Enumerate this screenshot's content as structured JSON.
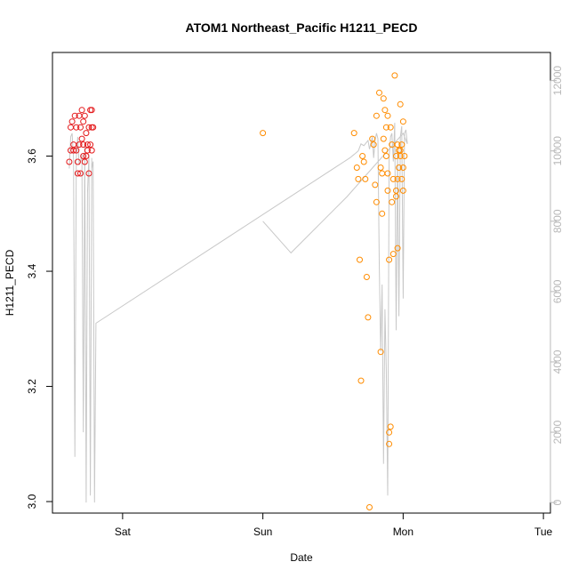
{
  "chart_data": {
    "type": "scatter",
    "title": "ATOM1 Northeast_Pacific H1211_PECD",
    "xlabel": "Date",
    "ylabel": "H1211_PECD",
    "x_ticks": [
      "Sat",
      "Sun",
      "Mon",
      "Tue"
    ],
    "xlim_days_relative_to_sat": [
      -0.5,
      3.05
    ],
    "ylim": [
      2.98,
      3.78
    ],
    "y_ticks": [
      3.0,
      3.2,
      3.4,
      3.6
    ],
    "y2_ticks": [
      0,
      2000,
      4000,
      6000,
      8000,
      10000,
      12000
    ],
    "y2lim": [
      -300,
      12800
    ],
    "grid": false,
    "colors": {
      "series1": "#e41a1c",
      "series2": "#ff8c00",
      "altitude_line": "#c8c8c8",
      "right_axis": "#b8b8b8"
    },
    "series": [
      {
        "color": "#e41a1c",
        "points": [
          [
            -0.38,
            3.59
          ],
          [
            -0.37,
            3.61
          ],
          [
            -0.37,
            3.65
          ],
          [
            -0.36,
            3.66
          ],
          [
            -0.35,
            3.62
          ],
          [
            -0.35,
            3.61
          ],
          [
            -0.34,
            3.67
          ],
          [
            -0.33,
            3.65
          ],
          [
            -0.33,
            3.61
          ],
          [
            -0.32,
            3.59
          ],
          [
            -0.32,
            3.57
          ],
          [
            -0.31,
            3.67
          ],
          [
            -0.31,
            3.62
          ],
          [
            -0.3,
            3.65
          ],
          [
            -0.3,
            3.57
          ],
          [
            -0.29,
            3.68
          ],
          [
            -0.29,
            3.63
          ],
          [
            -0.28,
            3.66
          ],
          [
            -0.28,
            3.62
          ],
          [
            -0.28,
            3.6
          ],
          [
            -0.27,
            3.59
          ],
          [
            -0.27,
            3.67
          ],
          [
            -0.26,
            3.6
          ],
          [
            -0.26,
            3.64
          ],
          [
            -0.25,
            3.62
          ],
          [
            -0.25,
            3.61
          ],
          [
            -0.24,
            3.65
          ],
          [
            -0.24,
            3.57
          ],
          [
            -0.23,
            3.68
          ],
          [
            -0.23,
            3.62
          ],
          [
            -0.22,
            3.68
          ],
          [
            -0.22,
            3.65
          ],
          [
            -0.22,
            3.61
          ],
          [
            -0.21,
            3.65
          ]
        ]
      },
      {
        "color": "#ff8c00",
        "points": [
          [
            1.0,
            3.64
          ],
          [
            1.65,
            3.64
          ],
          [
            1.67,
            3.58
          ],
          [
            1.68,
            3.56
          ],
          [
            1.69,
            3.42
          ],
          [
            1.7,
            3.21
          ],
          [
            1.71,
            3.6
          ],
          [
            1.72,
            3.59
          ],
          [
            1.73,
            3.56
          ],
          [
            1.74,
            3.39
          ],
          [
            1.75,
            3.32
          ],
          [
            1.76,
            2.99
          ],
          [
            1.78,
            3.63
          ],
          [
            1.79,
            3.62
          ],
          [
            1.8,
            3.55
          ],
          [
            1.81,
            3.52
          ],
          [
            1.81,
            3.67
          ],
          [
            1.83,
            3.71
          ],
          [
            1.84,
            3.26
          ],
          [
            1.84,
            3.58
          ],
          [
            1.85,
            3.5
          ],
          [
            1.85,
            3.57
          ],
          [
            1.86,
            3.7
          ],
          [
            1.86,
            3.63
          ],
          [
            1.87,
            3.61
          ],
          [
            1.87,
            3.68
          ],
          [
            1.88,
            3.6
          ],
          [
            1.88,
            3.65
          ],
          [
            1.89,
            3.67
          ],
          [
            1.89,
            3.54
          ],
          [
            1.89,
            3.57
          ],
          [
            1.9,
            3.42
          ],
          [
            1.9,
            3.1
          ],
          [
            1.9,
            3.12
          ],
          [
            1.91,
            3.13
          ],
          [
            1.91,
            3.65
          ],
          [
            1.92,
            3.62
          ],
          [
            1.92,
            3.52
          ],
          [
            1.93,
            3.56
          ],
          [
            1.93,
            3.43
          ],
          [
            1.94,
            3.74
          ],
          [
            1.95,
            3.53
          ],
          [
            1.95,
            3.54
          ],
          [
            1.95,
            3.6
          ],
          [
            1.96,
            3.62
          ],
          [
            1.96,
            3.44
          ],
          [
            1.96,
            3.56
          ],
          [
            1.97,
            3.58
          ],
          [
            1.97,
            3.61
          ],
          [
            1.98,
            3.69
          ],
          [
            1.98,
            3.6
          ],
          [
            1.98,
            3.61
          ],
          [
            1.99,
            3.62
          ],
          [
            1.99,
            3.56
          ],
          [
            2.0,
            3.66
          ],
          [
            2.0,
            3.54
          ],
          [
            2.0,
            3.58
          ],
          [
            2.01,
            3.6
          ]
        ]
      }
    ],
    "altitude_line": [
      [
        -0.38,
        9500
      ],
      [
        -0.37,
        10400
      ],
      [
        -0.36,
        10500
      ],
      [
        -0.35,
        9800
      ],
      [
        -0.34,
        1300
      ],
      [
        -0.33,
        9800
      ],
      [
        -0.32,
        10400
      ],
      [
        -0.31,
        9600
      ],
      [
        -0.3,
        9700
      ],
      [
        -0.29,
        9900
      ],
      [
        -0.28,
        2000
      ],
      [
        -0.27,
        10200
      ],
      [
        -0.26,
        0
      ],
      [
        -0.25,
        8800
      ],
      [
        -0.24,
        9900
      ],
      [
        -0.23,
        200
      ],
      [
        -0.22,
        9800
      ],
      [
        -0.22,
        9500
      ],
      [
        -0.21,
        9700
      ],
      [
        -0.2,
        0
      ],
      [
        -0.19,
        5100
      ],
      [
        1.62,
        9800
      ],
      [
        1.65,
        9900
      ],
      [
        1.68,
        10000
      ],
      [
        1.7,
        10200
      ],
      [
        1.72,
        10150
      ],
      [
        1.75,
        10300
      ],
      [
        1.76,
        10050
      ],
      [
        1.78,
        10400
      ],
      [
        1.79,
        9800
      ],
      [
        1.8,
        10300
      ],
      [
        1.81,
        10500
      ],
      [
        1.82,
        10350
      ],
      [
        1.83,
        6800
      ],
      [
        1.84,
        4300
      ],
      [
        1.85,
        6200
      ],
      [
        1.86,
        1100
      ],
      [
        1.87,
        5500
      ],
      [
        1.88,
        3800
      ],
      [
        1.89,
        200
      ],
      [
        1.9,
        9800
      ],
      [
        1.91,
        10400
      ],
      [
        1.92,
        10500
      ],
      [
        1.93,
        9700
      ],
      [
        1.94,
        10800
      ],
      [
        1.95,
        4900
      ],
      [
        1.96,
        10000
      ],
      [
        1.97,
        5300
      ],
      [
        1.98,
        10400
      ],
      [
        1.99,
        10700
      ],
      [
        2.0,
        5800
      ],
      [
        2.01,
        10500
      ],
      [
        2.02,
        10600
      ],
      [
        2.03,
        10200
      ],
      [
        2.0,
        10500
      ],
      [
        1.8,
        9600
      ],
      [
        1.6,
        8700
      ],
      [
        1.4,
        7900
      ],
      [
        1.2,
        7100
      ],
      [
        1.0,
        8000
      ]
    ]
  }
}
